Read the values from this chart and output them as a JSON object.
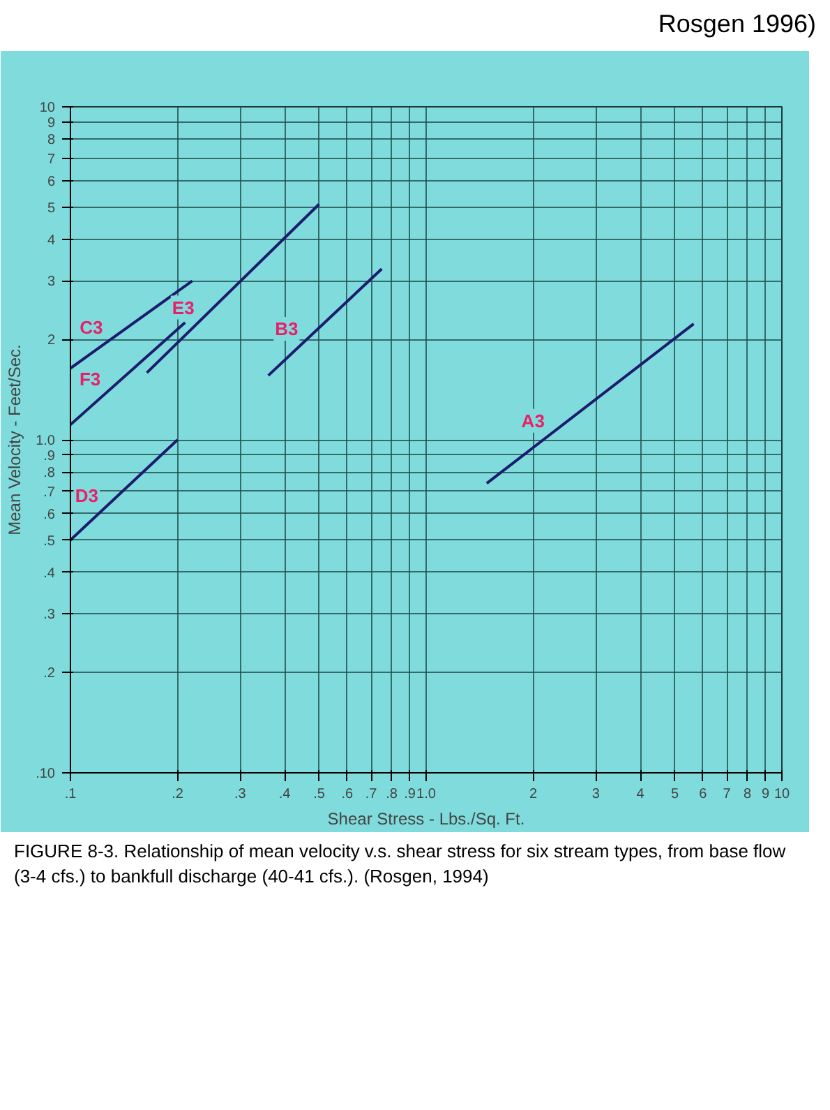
{
  "chart_data": {
    "type": "line",
    "xlabel": "Shear Stress - Lbs./Sq. Ft.",
    "ylabel": "Mean Velocity - Feet/Sec.",
    "log": "xy",
    "grid": true,
    "marker": "none",
    "line_style": "solid",
    "xlim": [
      0.1,
      10
    ],
    "ylim": [
      0.1,
      10
    ],
    "xticks": [
      {
        "value": 0.1,
        "label": ".1"
      },
      {
        "value": 0.2,
        "label": ".2"
      },
      {
        "value": 0.3,
        "label": ".3"
      },
      {
        "value": 0.4,
        "label": ".4"
      },
      {
        "value": 0.5,
        "label": ".5"
      },
      {
        "value": 0.6,
        "label": ".6"
      },
      {
        "value": 0.7,
        "label": ".7"
      },
      {
        "value": 0.8,
        "label": ".8"
      },
      {
        "value": 0.9,
        "label": ".9"
      },
      {
        "value": 1,
        "label": "1.0"
      },
      2,
      3,
      4,
      5,
      6,
      7,
      8,
      9,
      10
    ],
    "yticks": [
      {
        "value": 0.1,
        "label": ".10"
      },
      {
        "value": 0.2,
        "label": ".2"
      },
      {
        "value": 0.3,
        "label": ".3"
      },
      {
        "value": 0.4,
        "label": ".4"
      },
      {
        "value": 0.5,
        "label": ".5"
      },
      {
        "value": 0.6,
        "label": ".6"
      },
      {
        "value": 0.7,
        "label": ".7"
      },
      {
        "value": 0.8,
        "label": ".8"
      },
      {
        "value": 0.9,
        "label": ".9"
      },
      {
        "value": 1,
        "label": "1.0"
      },
      2,
      3,
      4,
      5,
      6,
      7,
      8,
      9,
      10
    ],
    "series": [
      {
        "name": "A3",
        "color": "#1c1c6e",
        "x": [
          1.48,
          5.65
        ],
        "values": [
          0.74,
          2.23
        ]
      },
      {
        "name": "B3",
        "color": "#1c1c6e",
        "x": [
          0.36,
          0.75
        ],
        "values": [
          1.56,
          3.26
        ]
      },
      {
        "name": "E3",
        "color": "#1c1c6e",
        "x": [
          0.164,
          0.5
        ],
        "values": [
          1.59,
          5.1
        ]
      },
      {
        "name": "C3",
        "color": "#1c1c6e",
        "x": [
          0.1,
          0.22
        ],
        "values": [
          1.64,
          3.0
        ]
      },
      {
        "name": "F3",
        "color": "#1c1c6e",
        "x": [
          0.1,
          0.21
        ],
        "values": [
          1.11,
          2.25
        ]
      },
      {
        "name": "D3",
        "color": "#1c1c6e",
        "x": [
          0.1,
          0.2
        ],
        "values": [
          0.5,
          1.0
        ]
      }
    ],
    "annotations": [
      "FIGURE 8-3. Relationship of mean velocity v.s. shear stress for six stream types, from base flow (3-4 cfs.) to bankfull discharge (40-41 cfs.). (Rosgen, 1994)",
      "Rosgen 1996)"
    ]
  }
}
